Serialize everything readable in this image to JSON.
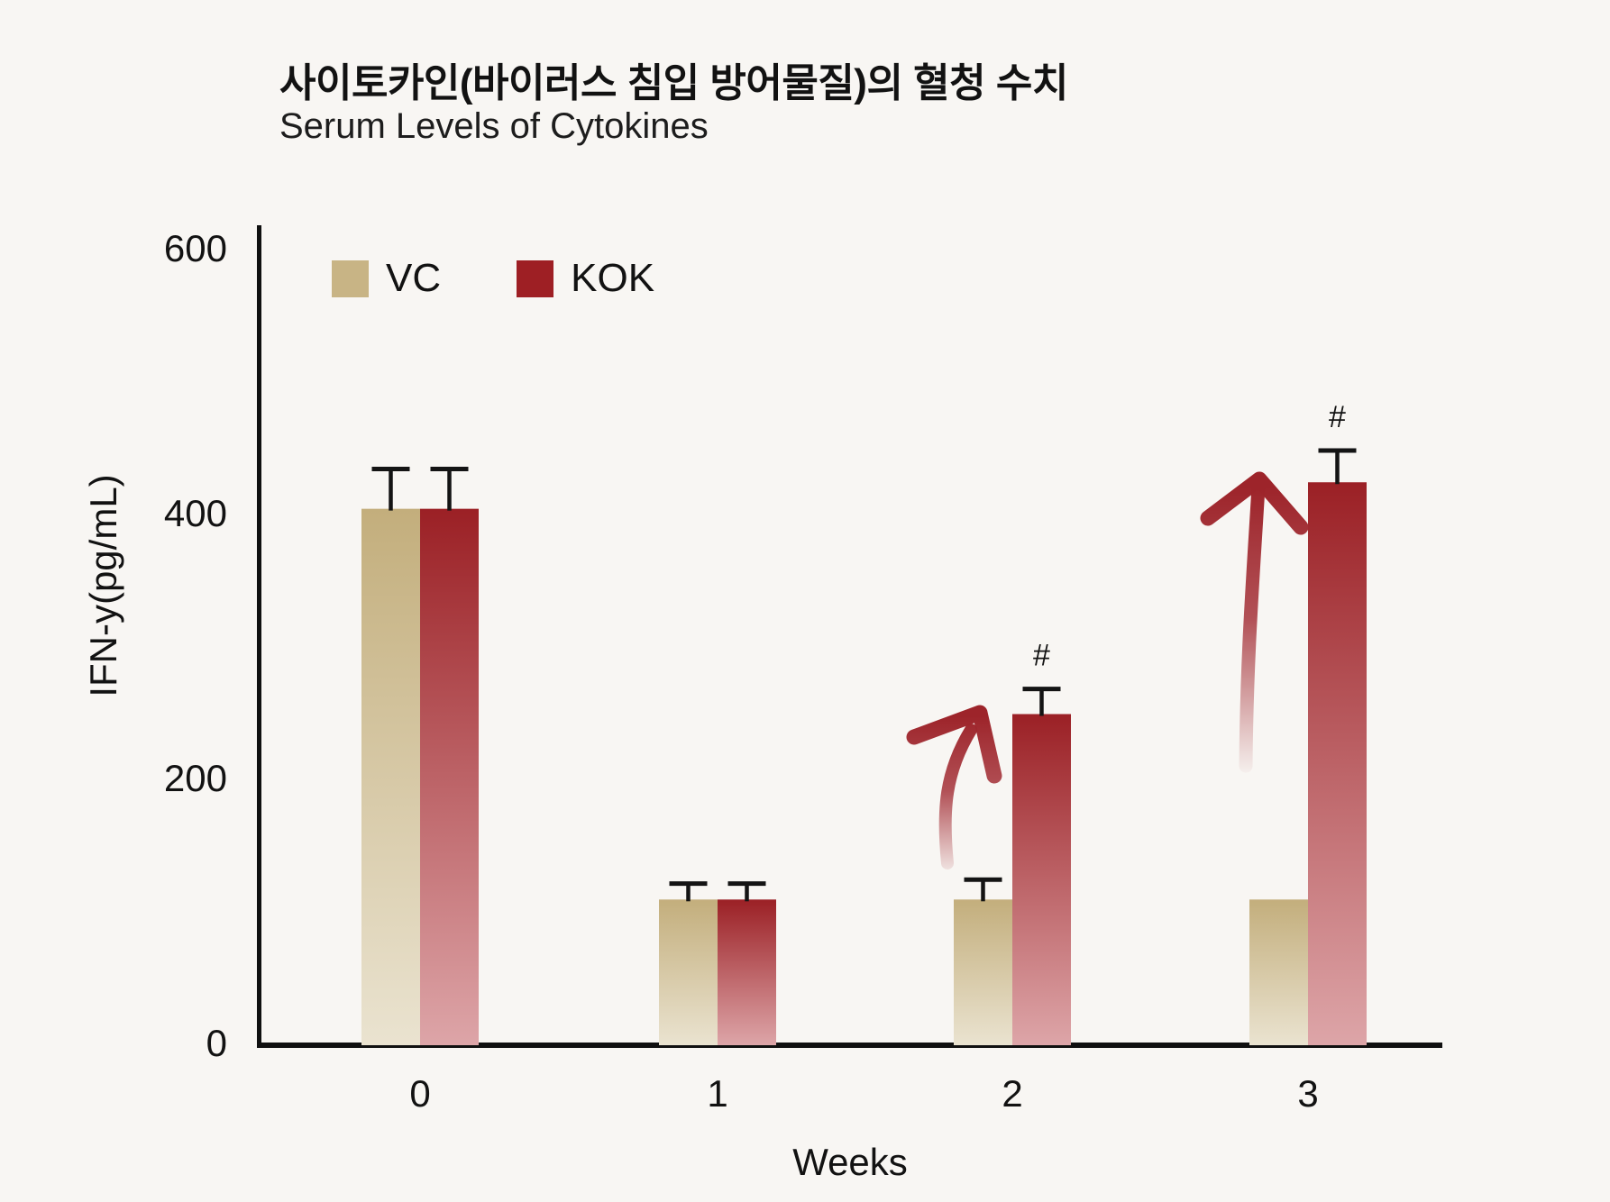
{
  "header": {
    "title_ko": "사이토카인(바이러스 침입 방어물질)의 혈청 수치",
    "title_en": "Serum Levels of Cytokines"
  },
  "legend": {
    "items": [
      {
        "label": "VC",
        "color": "#c8b485"
      },
      {
        "label": "KOK",
        "color": "#9e1f24"
      }
    ]
  },
  "axes": {
    "y_label": "IFN-y(pg/mL)",
    "x_label": "Weeks",
    "y_ticks": [
      0,
      200,
      400,
      600
    ],
    "y_max": 600,
    "x_ticks": [
      "0",
      "1",
      "2",
      "3"
    ]
  },
  "chart_data": {
    "type": "bar",
    "title": "Serum Levels of Cytokines",
    "title_korean": "사이토카인(바이러스 침입 방어물질)의 혈청 수치",
    "categories": [
      "0",
      "1",
      "2",
      "3"
    ],
    "xlabel": "Weeks",
    "ylabel": "IFN-y(pg/mL)",
    "ylim": [
      0,
      600
    ],
    "grid": false,
    "legend_position": "top-left",
    "series": [
      {
        "name": "VC",
        "color": "#c3ae7c",
        "color_fade": "#eae3d0",
        "values": [
          405,
          110,
          110,
          110
        ],
        "errors_plus": [
          30,
          12,
          15,
          null
        ]
      },
      {
        "name": "KOK",
        "color": "#9b2025",
        "color_fade": "#dda5a8",
        "values": [
          405,
          110,
          250,
          425
        ],
        "errors_plus": [
          30,
          12,
          19,
          24
        ]
      }
    ],
    "annotations": [
      {
        "series": "KOK",
        "category": "2",
        "text": "#"
      },
      {
        "series": "KOK",
        "category": "3",
        "text": "#"
      }
    ],
    "arrows": [
      {
        "meaning": "increase",
        "at_category": "2"
      },
      {
        "meaning": "increase",
        "at_category": "3"
      }
    ]
  }
}
